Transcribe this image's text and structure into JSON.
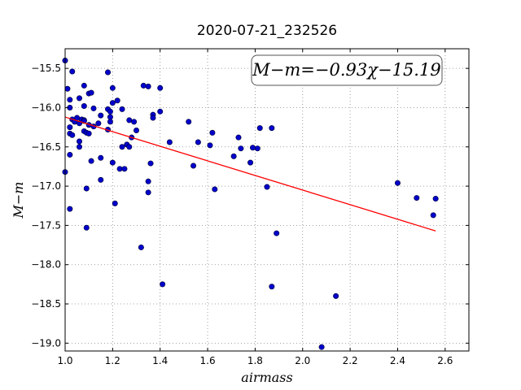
{
  "chart_data": {
    "type": "scatter",
    "title": "2020-07-21_232526",
    "xlabel": "airmass",
    "ylabel": "M−m",
    "xlim": [
      1.0,
      2.7
    ],
    "ylim": [
      -19.1,
      -15.25
    ],
    "invert_y": true,
    "grid": true,
    "x_ticks": [
      "1.0",
      "1.2",
      "1.4",
      "1.6",
      "1.8",
      "2.0",
      "2.2",
      "2.4",
      "2.6"
    ],
    "y_ticks": [
      "−15.5",
      "−16.0",
      "−16.5",
      "−17.0",
      "−17.5",
      "−18.0",
      "−18.5",
      "−19.0"
    ],
    "annotation": "M−m=−0.93χ−15.19",
    "colors": {
      "points": "#0000cc",
      "fit": "#ff0000"
    },
    "fit_line": {
      "slope": -0.93,
      "intercept": -15.19,
      "x_range": [
        1.0,
        2.56
      ]
    },
    "points": [
      [
        1.0,
        -15.4
      ],
      [
        1.0,
        -16.82
      ],
      [
        1.01,
        -15.76
      ],
      [
        1.02,
        -15.9
      ],
      [
        1.02,
        -16.0
      ],
      [
        1.02,
        -16.25
      ],
      [
        1.02,
        -16.33
      ],
      [
        1.02,
        -16.6
      ],
      [
        1.02,
        -17.29
      ],
      [
        1.03,
        -15.54
      ],
      [
        1.03,
        -16.15
      ],
      [
        1.03,
        -16.35
      ],
      [
        1.04,
        -16.18
      ],
      [
        1.05,
        -16.13
      ],
      [
        1.06,
        -15.88
      ],
      [
        1.06,
        -16.2
      ],
      [
        1.06,
        -16.43
      ],
      [
        1.06,
        -16.5
      ],
      [
        1.07,
        -16.15
      ],
      [
        1.08,
        -16.16
      ],
      [
        1.08,
        -16.3
      ],
      [
        1.08,
        -16.17
      ],
      [
        1.08,
        -15.72
      ],
      [
        1.08,
        -15.98
      ],
      [
        1.09,
        -16.32
      ],
      [
        1.09,
        -17.03
      ],
      [
        1.09,
        -17.53
      ],
      [
        1.1,
        -15.82
      ],
      [
        1.1,
        -16.22
      ],
      [
        1.1,
        -16.33
      ],
      [
        1.11,
        -15.81
      ],
      [
        1.11,
        -16.68
      ],
      [
        1.12,
        -16.01
      ],
      [
        1.12,
        -16.24
      ],
      [
        1.14,
        -16.2
      ],
      [
        1.15,
        -16.1
      ],
      [
        1.15,
        -16.64
      ],
      [
        1.15,
        -16.92
      ],
      [
        1.18,
        -15.55
      ],
      [
        1.18,
        -16.02
      ],
      [
        1.18,
        -16.28
      ],
      [
        1.19,
        -16.05
      ],
      [
        1.19,
        -16.12
      ],
      [
        1.19,
        -16.18
      ],
      [
        1.2,
        -15.75
      ],
      [
        1.2,
        -15.94
      ],
      [
        1.2,
        -16.7
      ],
      [
        1.21,
        -17.22
      ],
      [
        1.22,
        -15.91
      ],
      [
        1.23,
        -16.78
      ],
      [
        1.24,
        -16.02
      ],
      [
        1.24,
        -16.5
      ],
      [
        1.25,
        -16.78
      ],
      [
        1.26,
        -16.47
      ],
      [
        1.27,
        -16.16
      ],
      [
        1.27,
        -16.5
      ],
      [
        1.28,
        -16.38
      ],
      [
        1.29,
        -16.18
      ],
      [
        1.3,
        -16.29
      ],
      [
        1.32,
        -17.78
      ],
      [
        1.33,
        -15.72
      ],
      [
        1.35,
        -15.73
      ],
      [
        1.35,
        -16.94
      ],
      [
        1.35,
        -17.08
      ],
      [
        1.36,
        -16.71
      ],
      [
        1.37,
        -16.09
      ],
      [
        1.37,
        -16.13
      ],
      [
        1.4,
        -15.75
      ],
      [
        1.4,
        -16.05
      ],
      [
        1.41,
        -18.25
      ],
      [
        1.44,
        -16.44
      ],
      [
        1.52,
        -16.18
      ],
      [
        1.54,
        -16.74
      ],
      [
        1.56,
        -16.44
      ],
      [
        1.61,
        -16.48
      ],
      [
        1.62,
        -16.32
      ],
      [
        1.63,
        -17.04
      ],
      [
        1.71,
        -16.62
      ],
      [
        1.73,
        -16.38
      ],
      [
        1.74,
        -16.52
      ],
      [
        1.78,
        -16.7
      ],
      [
        1.79,
        -16.51
      ],
      [
        1.81,
        -16.52
      ],
      [
        1.82,
        -16.26
      ],
      [
        1.85,
        -17.01
      ],
      [
        1.87,
        -16.26
      ],
      [
        1.87,
        -18.28
      ],
      [
        1.89,
        -17.6
      ],
      [
        2.08,
        -19.05
      ],
      [
        2.14,
        -18.4
      ],
      [
        2.4,
        -16.96
      ],
      [
        2.48,
        -17.15
      ],
      [
        2.55,
        -17.37
      ],
      [
        2.56,
        -17.16
      ]
    ]
  }
}
